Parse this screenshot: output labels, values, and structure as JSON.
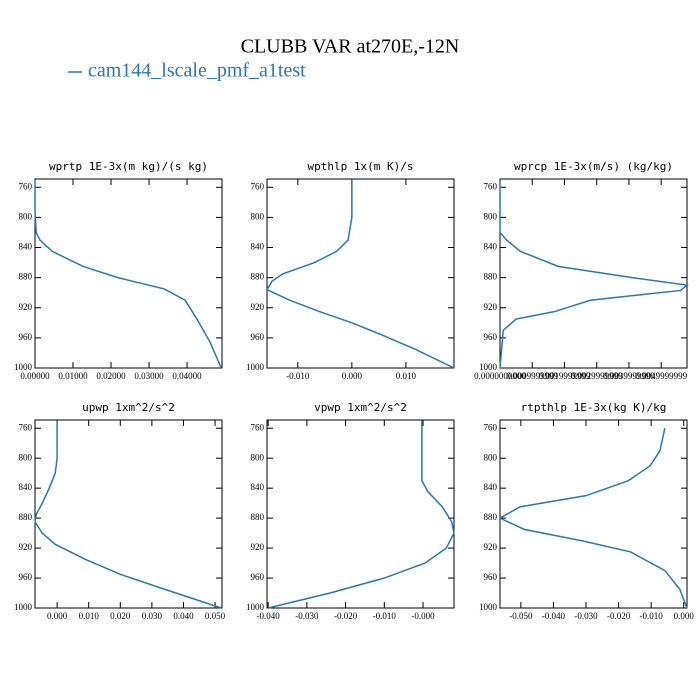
{
  "title": "CLUBB VAR at270E,-12N",
  "legend": {
    "name": "cam144_lscale_pmf_a1test",
    "color": "#2a78b0"
  },
  "chart_data": [
    {
      "type": "line",
      "title": "wprtp  1E-3x(m kg)/(s kg)",
      "color": "#2a78b0",
      "x": [
        0.0,
        0.0,
        0.0003,
        0.0013,
        0.0045,
        0.0126,
        0.0218,
        0.034,
        0.0395,
        0.0426,
        0.046,
        0.049
      ],
      "y": [
        750,
        790,
        820,
        830,
        845,
        865,
        880,
        895,
        910,
        935,
        965,
        1000
      ],
      "xlim": [
        0,
        0.0492
      ],
      "xticks": [
        {
          "value": 0,
          "label": "0.00000"
        },
        {
          "value": 0.01,
          "label": "0.01000"
        },
        {
          "value": 0.02,
          "label": "0.02000"
        },
        {
          "value": 0.03,
          "label": "0.03000"
        },
        {
          "value": 0.04,
          "label": "0.04000"
        }
      ],
      "ylim": [
        1000,
        749
      ],
      "yticks": [
        760,
        800,
        840,
        880,
        920,
        960,
        1000
      ]
    },
    {
      "type": "line",
      "title": "wpthlp  1x(m K)/s",
      "color": "#2a78b0",
      "x": [
        0.0,
        0.0,
        -0.0007,
        -0.0028,
        -0.0069,
        -0.0128,
        -0.0148,
        -0.0157,
        -0.0115,
        -0.006,
        0.0,
        0.0052,
        0.0117,
        0.0189
      ],
      "y": [
        750,
        800,
        830,
        845,
        860,
        875,
        885,
        896,
        910,
        925,
        940,
        955,
        975,
        1000
      ],
      "xlim": [
        -0.0157,
        0.0189
      ],
      "xticks": [
        {
          "value": -0.01,
          "label": "-0.010"
        },
        {
          "value": 0,
          "label": "0.000"
        },
        {
          "value": 0.01,
          "label": "0.010"
        }
      ],
      "ylim": [
        1000,
        749
      ],
      "yticks": [
        760,
        800,
        840,
        880,
        920,
        960,
        1000
      ]
    },
    {
      "type": "line",
      "title": "wprcp  1E-3x(m/s) (kg/kg)",
      "color": "#2a78b0",
      "x": [
        0.0,
        0.0,
        0.0002,
        0.00063,
        0.0018,
        0.0041,
        0.0058,
        0.0056,
        0.0028,
        0.0017,
        0.0005,
        0.0001,
        0.0
      ],
      "y": [
        750,
        820,
        830,
        845,
        865,
        880,
        890,
        897,
        910,
        925,
        935,
        950,
        1000
      ],
      "xlim": [
        0,
        0.0058
      ],
      "xticks": [
        {
          "value": 0,
          "label": "0.0000000000"
        },
        {
          "value": 0.001,
          "label": "0.0009999999"
        },
        {
          "value": 0.002,
          "label": "0.0019999999"
        },
        {
          "value": 0.003,
          "label": "0.0029999999"
        },
        {
          "value": 0.004,
          "label": "0.0039999999"
        },
        {
          "value": 0.005,
          "label": "0.0049999999"
        }
      ],
      "ylim": [
        1000,
        749
      ],
      "yticks": [
        760,
        800,
        840,
        880,
        920,
        960,
        1000
      ]
    },
    {
      "type": "line",
      "title": "upwp  1xm^2/s^2",
      "color": "#2a78b0",
      "x": [
        0.0,
        0.0,
        -0.0006,
        -0.0025,
        -0.0047,
        -0.0066,
        -0.007,
        -0.0047,
        -0.0006,
        0.0089,
        0.02,
        0.034,
        0.052
      ],
      "y": [
        750,
        800,
        820,
        840,
        860,
        875,
        885,
        900,
        915,
        935,
        955,
        975,
        1000
      ],
      "xlim": [
        -0.007,
        0.0522
      ],
      "xticks": [
        {
          "value": 0,
          "label": "0.000"
        },
        {
          "value": 0.01,
          "label": "0.010"
        },
        {
          "value": 0.02,
          "label": "0.020"
        },
        {
          "value": 0.03,
          "label": "0.030"
        },
        {
          "value": 0.04,
          "label": "0.040"
        },
        {
          "value": 0.05,
          "label": "0.050"
        }
      ],
      "ylim": [
        1000,
        749
      ],
      "yticks": [
        760,
        800,
        840,
        880,
        920,
        960,
        1000
      ]
    },
    {
      "type": "line",
      "title": "vpwp  1xm^2/s^2",
      "color": "#2a78b0",
      "x": [
        -0.0003,
        -0.0003,
        0.0013,
        0.005,
        0.0074,
        0.008,
        0.006,
        0.0005,
        -0.01,
        -0.024,
        -0.04
      ],
      "y": [
        750,
        830,
        845,
        865,
        885,
        900,
        920,
        940,
        960,
        980,
        1000
      ],
      "xlim": [
        -0.0403,
        0.008
      ],
      "xticks": [
        {
          "value": -0.04,
          "label": "-0.040"
        },
        {
          "value": -0.03,
          "label": "-0.030"
        },
        {
          "value": -0.02,
          "label": "-0.020"
        },
        {
          "value": -0.01,
          "label": "-0.010"
        },
        {
          "value": 0,
          "label": "-0.000"
        }
      ],
      "ylim": [
        1000,
        749
      ],
      "yticks": [
        760,
        800,
        840,
        880,
        920,
        960,
        1000
      ]
    },
    {
      "type": "line",
      "title": "rtpthlp  1E-3x(kg K)/kg",
      "color": "#2a78b0",
      "x": [
        -0.0058,
        -0.0073,
        -0.0103,
        -0.017,
        -0.03,
        -0.0503,
        -0.0564,
        -0.049,
        -0.0315,
        -0.0164,
        -0.0058,
        -0.0012,
        0.001
      ],
      "y": [
        760,
        790,
        810,
        830,
        850,
        865,
        880,
        895,
        910,
        925,
        950,
        975,
        1000
      ],
      "xlim": [
        -0.0564,
        0.001
      ],
      "xticks": [
        {
          "value": -0.05,
          "label": "-0.050"
        },
        {
          "value": -0.04,
          "label": "-0.040"
        },
        {
          "value": -0.03,
          "label": "-0.030"
        },
        {
          "value": -0.02,
          "label": "-0.020"
        },
        {
          "value": -0.01,
          "label": "-0.010"
        },
        {
          "value": 0,
          "label": "0.000"
        }
      ],
      "ylim": [
        1000,
        749
      ],
      "yticks": [
        760,
        800,
        840,
        880,
        920,
        960,
        1000
      ]
    }
  ]
}
